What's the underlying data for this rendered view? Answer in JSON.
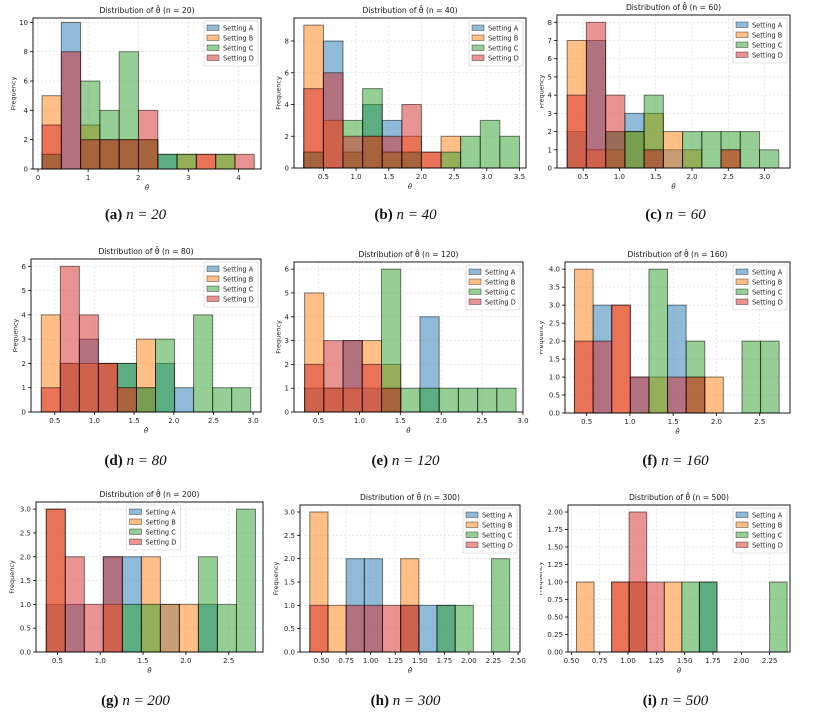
{
  "settings": [
    {
      "name": "Setting A",
      "color": "#1f77b4"
    },
    {
      "name": "Setting B",
      "color": "#ff7f0e"
    },
    {
      "name": "Setting C",
      "color": "#2ca02c"
    },
    {
      "name": "Setting D",
      "color": "#d62728"
    }
  ],
  "chart_data": [
    {
      "type": "bar",
      "id": "a",
      "caption_label": "(a)",
      "caption_n": "n = 20",
      "title": "Distribution of θ̂ (n = 20)",
      "xlabel": "θ̂",
      "ylabel": "Frequency",
      "xlim": [
        -0.1,
        4.45
      ],
      "ylim": [
        0,
        10.3
      ],
      "xticks": [
        0,
        1,
        2,
        3,
        4
      ],
      "xtick_labels": [
        "0",
        "1",
        "2",
        "3",
        "4"
      ],
      "yticks": [
        0,
        2,
        4,
        6,
        8,
        10
      ],
      "ytick_labels": [
        "0",
        "2",
        "4",
        "6",
        "8",
        "10"
      ],
      "legend": "top-right",
      "bins": [
        0.08,
        0.465,
        0.85,
        1.235,
        1.62,
        2.005,
        2.39,
        2.775,
        3.16,
        3.545,
        3.93,
        4.315
      ],
      "series": [
        {
          "name": "Setting A",
          "values": [
            1,
            10,
            2,
            2,
            2,
            2,
            1,
            0,
            0,
            0,
            0
          ]
        },
        {
          "name": "Setting B",
          "values": [
            5,
            0,
            3,
            2,
            2,
            2,
            0,
            1,
            1,
            1,
            0
          ]
        },
        {
          "name": "Setting C",
          "values": [
            1,
            0,
            6,
            4,
            8,
            2,
            1,
            1,
            0,
            1,
            0
          ]
        },
        {
          "name": "Setting D",
          "values": [
            3,
            8,
            2,
            2,
            2,
            4,
            0,
            0,
            1,
            0,
            1
          ]
        }
      ]
    },
    {
      "type": "bar",
      "id": "b",
      "caption_label": "(b)",
      "caption_n": "n = 40",
      "title": "Distribution of θ̂ (n = 40)",
      "xlabel": "θ̂",
      "ylabel": "Frequency",
      "xlim": [
        0.05,
        3.6
      ],
      "ylim": [
        0,
        9.45
      ],
      "xticks": [
        0.5,
        1.0,
        1.5,
        2.0,
        2.5,
        3.0,
        3.5
      ],
      "xtick_labels": [
        "0.5",
        "1.0",
        "1.5",
        "2.0",
        "2.5",
        "3.0",
        "3.5"
      ],
      "yticks": [
        0,
        2,
        4,
        6,
        8
      ],
      "ytick_labels": [
        "0",
        "2",
        "4",
        "6",
        "8"
      ],
      "legend": "top-right",
      "bins": [
        0.2,
        0.5,
        0.8,
        1.1,
        1.4,
        1.7,
        2.0,
        2.3,
        2.6,
        2.9,
        3.2,
        3.5
      ],
      "series": [
        {
          "name": "Setting A",
          "values": [
            1,
            8,
            1,
            4,
            3,
            1,
            0,
            0,
            0,
            0,
            0
          ]
        },
        {
          "name": "Setting B",
          "values": [
            9,
            3,
            1,
            2,
            1,
            2,
            1,
            2,
            0,
            0,
            0
          ]
        },
        {
          "name": "Setting C",
          "values": [
            1,
            0,
            3,
            5,
            1,
            1,
            0,
            1,
            2,
            3,
            2
          ]
        },
        {
          "name": "Setting D",
          "values": [
            5,
            6,
            2,
            2,
            2,
            4,
            1,
            0,
            0,
            0,
            0
          ]
        }
      ]
    },
    {
      "type": "bar",
      "id": "c",
      "caption_label": "(c)",
      "caption_n": "n = 60",
      "title": "Distribution of θ̂ (n = 60)",
      "xlabel": "θ̂",
      "ylabel": "Frequency",
      "xlim": [
        0.14,
        3.35
      ],
      "ylim": [
        0,
        8.4
      ],
      "xticks": [
        0.5,
        1.0,
        1.5,
        2.0,
        2.5,
        3.0
      ],
      "xtick_labels": [
        "0.5",
        "1.0",
        "1.5",
        "2.0",
        "2.5",
        "3.0"
      ],
      "yticks": [
        0,
        1,
        2,
        3,
        4,
        5,
        6,
        7,
        8
      ],
      "ytick_labels": [
        "0",
        "1",
        "2",
        "3",
        "4",
        "5",
        "6",
        "7",
        "8"
      ],
      "legend": "top-right",
      "bins": [
        0.28,
        0.545,
        0.81,
        1.075,
        1.34,
        1.605,
        1.87,
        2.135,
        2.4,
        2.665,
        2.93,
        3.195
      ],
      "series": [
        {
          "name": "Setting A",
          "values": [
            2,
            7,
            2,
            3,
            1,
            1,
            0,
            0,
            0,
            0,
            0
          ]
        },
        {
          "name": "Setting B",
          "values": [
            7,
            1,
            1,
            2,
            3,
            2,
            1,
            0,
            1,
            0,
            0
          ]
        },
        {
          "name": "Setting C",
          "values": [
            0,
            0,
            2,
            2,
            4,
            0,
            2,
            2,
            2,
            2,
            1
          ]
        },
        {
          "name": "Setting D",
          "values": [
            4,
            8,
            4,
            0,
            1,
            0,
            0,
            0,
            1,
            0,
            0
          ]
        }
      ]
    },
    {
      "type": "bar",
      "id": "d",
      "caption_label": "(d)",
      "caption_n": "n = 80",
      "title": "Distribution of θ̂ (n = 80)",
      "xlabel": "θ̂",
      "ylabel": "Frequency",
      "xlim": [
        0.2,
        3.1
      ],
      "ylim": [
        0,
        6.3
      ],
      "xticks": [
        0.5,
        1.0,
        1.5,
        2.0,
        2.5,
        3.0
      ],
      "xtick_labels": [
        "0.5",
        "1.0",
        "1.5",
        "2.0",
        "2.5",
        "3.0"
      ],
      "yticks": [
        0,
        1,
        2,
        3,
        4,
        5,
        6
      ],
      "ytick_labels": [
        "0",
        "1",
        "2",
        "3",
        "4",
        "5",
        "6"
      ],
      "legend": "top-right",
      "bins": [
        0.33,
        0.57,
        0.81,
        1.05,
        1.29,
        1.53,
        1.77,
        2.01,
        2.25,
        2.49,
        2.73,
        2.97
      ],
      "series": [
        {
          "name": "Setting A",
          "values": [
            0,
            2,
            3,
            2,
            2,
            1,
            2,
            1,
            0,
            0,
            0
          ]
        },
        {
          "name": "Setting B",
          "values": [
            4,
            2,
            2,
            2,
            1,
            3,
            0,
            0,
            0,
            0,
            0
          ]
        },
        {
          "name": "Setting C",
          "values": [
            0,
            0,
            0,
            0,
            2,
            1,
            3,
            0,
            4,
            1,
            1
          ]
        },
        {
          "name": "Setting D",
          "values": [
            1,
            6,
            4,
            2,
            1,
            0,
            0,
            0,
            0,
            0,
            0
          ]
        }
      ]
    },
    {
      "type": "bar",
      "id": "e",
      "caption_label": "(e)",
      "caption_n": "n = 120",
      "title": "Distribution of θ̂ (n = 120)",
      "xlabel": "θ̂",
      "ylabel": "Frequency",
      "xlim": [
        0.2,
        3.0
      ],
      "ylim": [
        0,
        6.3
      ],
      "xticks": [
        0.5,
        1.0,
        1.5,
        2.0,
        2.5,
        3.0
      ],
      "xtick_labels": [
        "0.5",
        "1.0",
        "1.5",
        "2.0",
        "2.5",
        "3.0"
      ],
      "yticks": [
        0,
        1,
        2,
        3,
        4,
        5,
        6
      ],
      "ytick_labels": [
        "0",
        "1",
        "2",
        "3",
        "4",
        "5",
        "6"
      ],
      "legend": "top-right",
      "bins": [
        0.33,
        0.565,
        0.8,
        1.035,
        1.27,
        1.505,
        1.74,
        1.975,
        2.21,
        2.445,
        2.68,
        2.915
      ],
      "series": [
        {
          "name": "Setting A",
          "values": [
            1,
            1,
            3,
            1,
            1,
            0,
            4,
            0,
            0,
            0,
            0
          ]
        },
        {
          "name": "Setting B",
          "values": [
            5,
            1,
            1,
            3,
            2,
            0,
            0,
            0,
            0,
            0,
            0
          ]
        },
        {
          "name": "Setting C",
          "values": [
            0,
            0,
            0,
            0,
            6,
            1,
            1,
            1,
            1,
            1,
            1
          ]
        },
        {
          "name": "Setting D",
          "values": [
            2,
            3,
            3,
            2,
            1,
            0,
            0,
            0,
            0,
            0,
            0
          ]
        }
      ]
    },
    {
      "type": "bar",
      "id": "f",
      "caption_label": "(f)",
      "caption_n": "n = 160",
      "title": "Distribution of θ̂ (n = 160)",
      "xlabel": "θ̂",
      "ylabel": "Frequency",
      "xlim": [
        0.25,
        2.85
      ],
      "ylim": [
        0,
        4.2
      ],
      "xticks": [
        0.5,
        1.0,
        1.5,
        2.0,
        2.5
      ],
      "xtick_labels": [
        "0.5",
        "1.0",
        "1.5",
        "2.0",
        "2.5"
      ],
      "yticks": [
        0,
        0.5,
        1.0,
        1.5,
        2.0,
        2.5,
        3.0,
        3.5,
        4.0
      ],
      "ytick_labels": [
        "0.0",
        "0.5",
        "1.0",
        "1.5",
        "2.0",
        "2.5",
        "3.0",
        "3.5",
        "4.0"
      ],
      "legend": "top-right",
      "bins": [
        0.36,
        0.575,
        0.79,
        1.005,
        1.22,
        1.435,
        1.65,
        1.865,
        2.08,
        2.295,
        2.51,
        2.725
      ],
      "series": [
        {
          "name": "Setting A",
          "values": [
            0,
            3,
            0,
            1,
            0,
            3,
            0,
            0,
            0,
            0,
            0
          ]
        },
        {
          "name": "Setting B",
          "values": [
            4,
            0,
            3,
            0,
            1,
            0,
            1,
            1,
            0,
            0,
            0
          ]
        },
        {
          "name": "Setting C",
          "values": [
            0,
            0,
            0,
            0,
            4,
            0,
            2,
            0,
            0,
            2,
            2
          ]
        },
        {
          "name": "Setting D",
          "values": [
            2,
            2,
            3,
            1,
            0,
            1,
            1,
            0,
            0,
            0,
            0
          ]
        }
      ]
    },
    {
      "type": "bar",
      "id": "g",
      "caption_label": "(g)",
      "caption_n": "n = 200",
      "title": "Distribution of θ̂ (n = 200)",
      "xlabel": "θ̂",
      "ylabel": "Frequency",
      "xlim": [
        0.25,
        2.9
      ],
      "ylim": [
        0,
        3.15
      ],
      "xticks": [
        0.5,
        1.0,
        1.5,
        2.0,
        2.5
      ],
      "xtick_labels": [
        "0.5",
        "1.0",
        "1.5",
        "2.0",
        "2.5"
      ],
      "yticks": [
        0,
        0.5,
        1.0,
        1.5,
        2.0,
        2.5,
        3.0
      ],
      "ytick_labels": [
        "0.0",
        "0.5",
        "1.0",
        "1.5",
        "2.0",
        "2.5",
        "3.0"
      ],
      "legend": "top-center",
      "bins": [
        0.37,
        0.592,
        0.814,
        1.036,
        1.258,
        1.48,
        1.702,
        1.924,
        2.146,
        2.368,
        2.59,
        2.812
      ],
      "series": [
        {
          "name": "Setting A",
          "values": [
            1,
            1,
            0,
            2,
            2,
            0,
            1,
            0,
            1,
            0,
            0
          ]
        },
        {
          "name": "Setting B",
          "values": [
            3,
            0,
            0,
            1,
            0,
            2,
            1,
            1,
            0,
            0,
            0
          ]
        },
        {
          "name": "Setting C",
          "values": [
            0,
            0,
            0,
            0,
            1,
            1,
            0,
            0,
            2,
            1,
            3
          ]
        },
        {
          "name": "Setting D",
          "values": [
            3,
            2,
            1,
            2,
            0,
            0,
            0,
            0,
            0,
            0,
            0
          ]
        }
      ]
    },
    {
      "type": "bar",
      "id": "h",
      "caption_label": "(h)",
      "caption_n": "n = 300",
      "title": "Distribution of θ̂ (n = 300)",
      "xlabel": "θ̂",
      "ylabel": "Frequency",
      "xlim": [
        0.28,
        2.52
      ],
      "ylim": [
        0,
        3.15
      ],
      "xticks": [
        0.5,
        0.75,
        1.0,
        1.25,
        1.5,
        1.75,
        2.0,
        2.25,
        2.5
      ],
      "xtick_labels": [
        "0.50",
        "0.75",
        "1.00",
        "1.25",
        "1.50",
        "1.75",
        "2.00",
        "2.25",
        "2.50"
      ],
      "yticks": [
        0,
        0.5,
        1.0,
        1.5,
        2.0,
        2.5,
        3.0
      ],
      "ytick_labels": [
        "0.0",
        "0.5",
        "1.0",
        "1.5",
        "2.0",
        "2.5",
        "3.0"
      ],
      "legend": "top-right",
      "bins": [
        0.38,
        0.565,
        0.75,
        0.935,
        1.12,
        1.305,
        1.49,
        1.675,
        1.86,
        2.045,
        2.23,
        2.415
      ],
      "series": [
        {
          "name": "Setting A",
          "values": [
            0,
            0,
            2,
            2,
            0,
            1,
            1,
            1,
            0,
            0,
            0
          ]
        },
        {
          "name": "Setting B",
          "values": [
            3,
            1,
            0,
            0,
            0,
            2,
            0,
            0,
            0,
            0,
            0
          ]
        },
        {
          "name": "Setting C",
          "values": [
            0,
            0,
            0,
            0,
            0,
            0,
            0,
            1,
            1,
            0,
            2
          ]
        },
        {
          "name": "Setting D",
          "values": [
            1,
            0,
            1,
            1,
            1,
            1,
            0,
            0,
            0,
            0,
            0
          ]
        }
      ]
    },
    {
      "type": "bar",
      "id": "i",
      "caption_label": "(i)",
      "caption_n": "n = 500",
      "title": "Distribution of θ̂ (n = 500)",
      "xlabel": "θ̂",
      "ylabel": "Frequency",
      "xlim": [
        0.47,
        2.43
      ],
      "ylim": [
        0,
        2.1
      ],
      "xticks": [
        0.5,
        0.75,
        1.0,
        1.25,
        1.5,
        1.75,
        2.0,
        2.25
      ],
      "xtick_labels": [
        "0.50",
        "0.75",
        "1.00",
        "1.25",
        "1.50",
        "1.75",
        "2.00",
        "2.25"
      ],
      "yticks": [
        0,
        0.25,
        0.5,
        0.75,
        1.0,
        1.25,
        1.5,
        1.75,
        2.0
      ],
      "ytick_labels": [
        "0.00",
        "0.25",
        "0.50",
        "0.75",
        "1.00",
        "1.25",
        "1.50",
        "1.75",
        "2.00"
      ],
      "legend": "top-right",
      "bins": [
        0.545,
        0.7,
        0.855,
        1.01,
        1.165,
        1.32,
        1.475,
        1.63,
        1.785,
        1.94,
        2.095,
        2.25,
        2.405
      ],
      "series": [
        {
          "name": "Setting A",
          "values": [
            0,
            0,
            0,
            1,
            0,
            0,
            0,
            1,
            0,
            0,
            0,
            0
          ]
        },
        {
          "name": "Setting B",
          "values": [
            1,
            0,
            1,
            1,
            0,
            1,
            0,
            0,
            0,
            0,
            0,
            0
          ]
        },
        {
          "name": "Setting C",
          "values": [
            0,
            0,
            0,
            0,
            0,
            0,
            1,
            1,
            0,
            0,
            0,
            1
          ]
        },
        {
          "name": "Setting D",
          "values": [
            0,
            0,
            1,
            2,
            1,
            0,
            0,
            0,
            0,
            0,
            0,
            0
          ]
        }
      ]
    }
  ]
}
